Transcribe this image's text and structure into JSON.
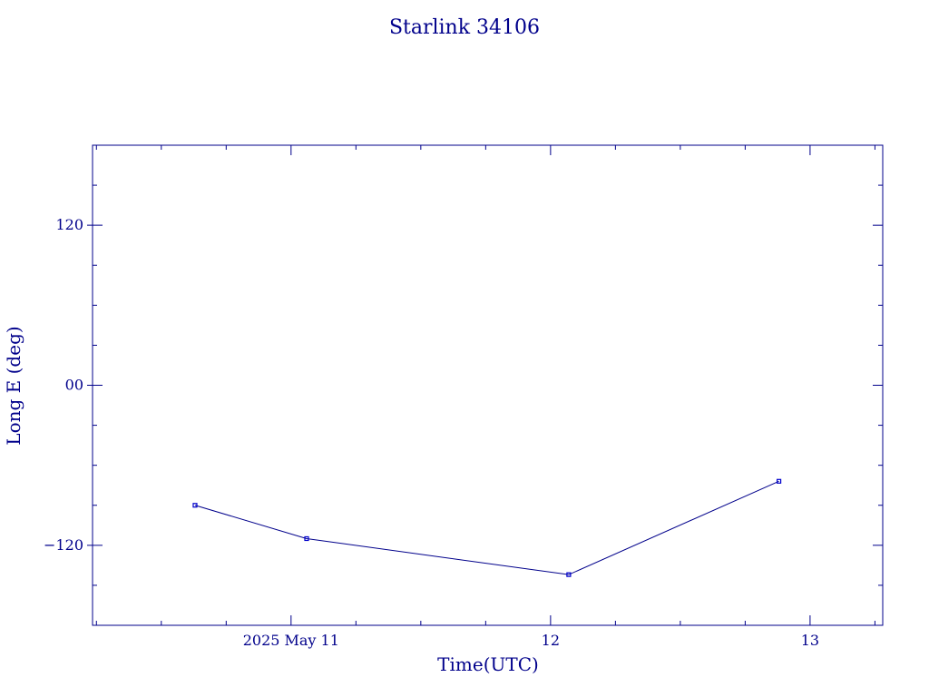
{
  "chart_data": {
    "type": "line",
    "title": "Starlink 34106",
    "xlabel": "Time(UTC)",
    "ylabel": "Long E (deg)",
    "x_unit": "days since 2025-05-10 00:00 UTC (axis shows dates)",
    "xlim": [
      10.235,
      13.28
    ],
    "ylim": [
      -180,
      180
    ],
    "x_tick_labels": [
      {
        "x": 11.0,
        "label": "2025 May 11"
      },
      {
        "x": 12.0,
        "label": "12"
      },
      {
        "x": 13.0,
        "label": "13"
      }
    ],
    "y_tick_labels": [
      {
        "y": 120,
        "label": "120"
      },
      {
        "y": 0,
        "label": "00"
      },
      {
        "y": -120,
        "label": "−120"
      }
    ],
    "x_major_ticks": [
      11.0,
      12.0,
      13.0
    ],
    "x_minor_ticks": [
      10.25,
      10.5,
      10.75,
      11.25,
      11.5,
      11.75,
      12.25,
      12.5,
      12.75,
      13.25
    ],
    "y_major_ticks": [
      -120,
      0,
      120
    ],
    "y_minor_ticks": [
      -150,
      -90,
      -60,
      -30,
      30,
      60,
      90,
      150
    ],
    "series": [
      {
        "name": "Starlink 34106",
        "points": [
          {
            "x": 10.63,
            "y": -90
          },
          {
            "x": 11.06,
            "y": -115
          },
          {
            "x": 12.07,
            "y": -142
          },
          {
            "x": 12.88,
            "y": -72
          }
        ]
      }
    ],
    "grid": false,
    "legend": "none"
  }
}
